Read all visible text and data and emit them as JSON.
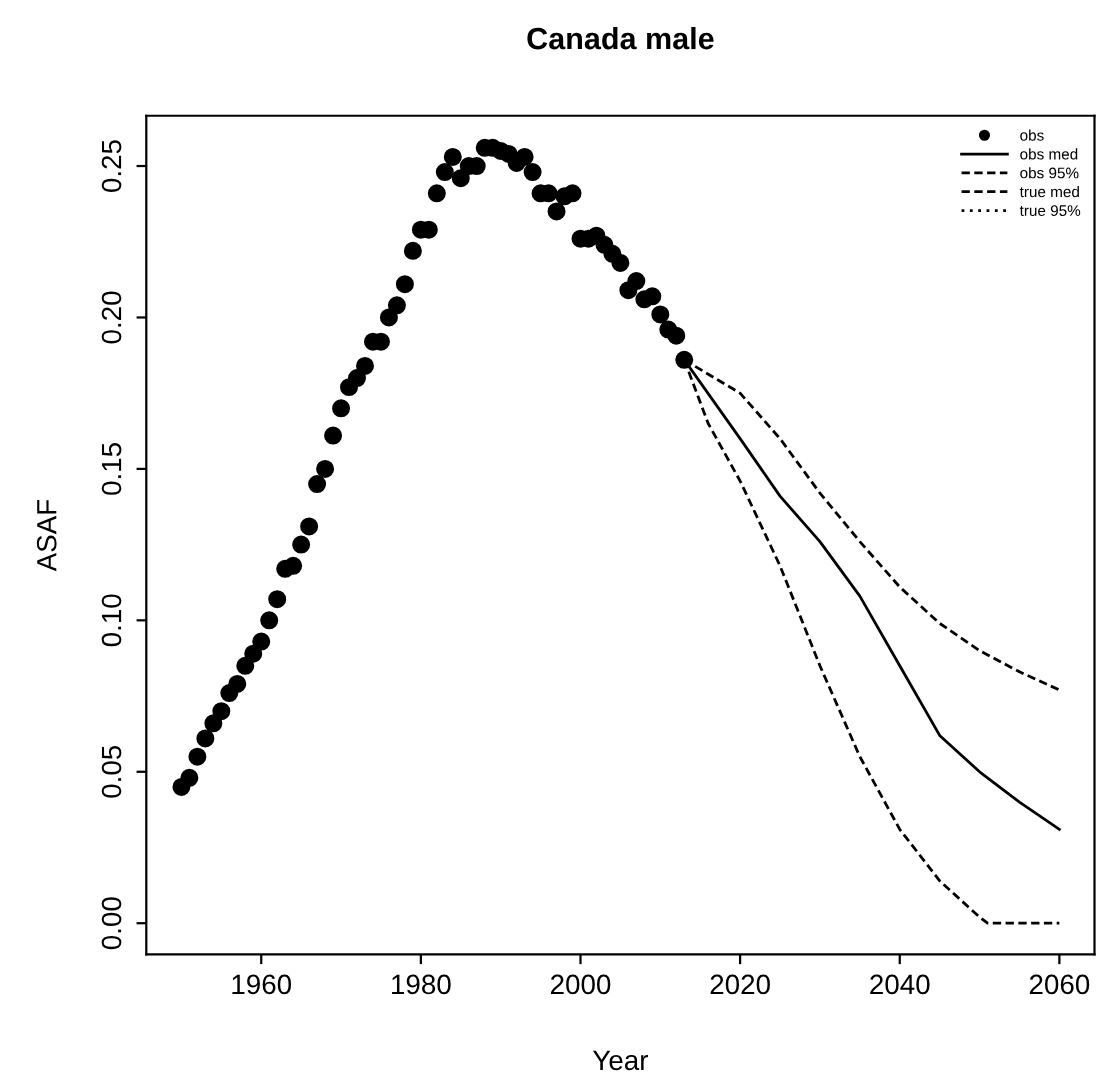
{
  "chart_data": {
    "type": "line",
    "title": "Canada male",
    "xlabel": "Year",
    "ylabel": "ASAF",
    "xlim": [
      1945.6,
      2064.4
    ],
    "xticks": [
      1960,
      1980,
      2000,
      2020,
      2040,
      2060
    ],
    "ylim": [
      -0.0103,
      0.2666
    ],
    "yticks": [
      {
        "value": 0,
        "label": "0.00"
      },
      {
        "value": 0.05,
        "label": "0.05"
      },
      {
        "value": 0.1,
        "label": "0.10"
      },
      {
        "value": 0.15,
        "label": "0.15"
      },
      {
        "value": 0.2,
        "label": "0.20"
      },
      {
        "value": 0.25,
        "label": "0.25"
      }
    ],
    "grid": false,
    "legend": "top right",
    "series": [
      {
        "name": "obs",
        "type": "scatter",
        "marker": "circle",
        "color": "#000000",
        "x": [
          1950,
          1951,
          1952,
          1953,
          1954,
          1955,
          1956,
          1957,
          1958,
          1959,
          1960,
          1961,
          1962,
          1963,
          1964,
          1965,
          1966,
          1967,
          1968,
          1969,
          1970,
          1971,
          1972,
          1973,
          1974,
          1975,
          1976,
          1977,
          1978,
          1979,
          1980,
          1981,
          1982,
          1983,
          1984,
          1985,
          1986,
          1987,
          1988,
          1989,
          1990,
          1991,
          1992,
          1993,
          1994,
          1995,
          1996,
          1997,
          1998,
          1999,
          2000,
          2001,
          2002,
          2003,
          2004,
          2005,
          2006,
          2007,
          2008,
          2009,
          2010,
          2011,
          2012,
          2013
        ],
        "values": [
          0.045,
          0.048,
          0.055,
          0.061,
          0.066,
          0.07,
          0.076,
          0.079,
          0.085,
          0.089,
          0.093,
          0.1,
          0.107,
          0.117,
          0.118,
          0.125,
          0.131,
          0.145,
          0.15,
          0.161,
          0.17,
          0.177,
          0.18,
          0.184,
          0.192,
          0.192,
          0.2,
          0.204,
          0.211,
          0.222,
          0.229,
          0.229,
          0.241,
          0.248,
          0.253,
          0.246,
          0.25,
          0.25,
          0.256,
          0.256,
          0.255,
          0.254,
          0.251,
          0.253,
          0.248,
          0.241,
          0.241,
          0.235,
          0.24,
          0.241,
          0.226,
          0.226,
          0.227,
          0.224,
          0.221,
          0.218,
          0.209,
          0.212,
          0.206,
          0.207,
          0.201,
          0.196,
          0.194,
          0.186
        ]
      },
      {
        "name": "obs med",
        "line_style": "solid",
        "color": "#000000",
        "x": [
          2013,
          2020,
          2025,
          2030,
          2035,
          2040,
          2045,
          2050,
          2055,
          2060
        ],
        "values": [
          0.186,
          0.16,
          0.141,
          0.126,
          0.108,
          0.085,
          0.062,
          0.05,
          0.04,
          0.031
        ]
      },
      {
        "name": "obs 95%",
        "line_style": "dashed",
        "color": "#000000",
        "x": [
          2013,
          2020,
          2025,
          2030,
          2035,
          2040,
          2045,
          2050,
          2055,
          2060
        ],
        "values": [
          0.186,
          0.175,
          0.16,
          0.142,
          0.126,
          0.111,
          0.099,
          0.09,
          0.083,
          0.077
        ]
      },
      {
        "line_style": "dashed",
        "color": "#000000",
        "x": [
          2013,
          2016,
          2020,
          2025,
          2030,
          2035,
          2040,
          2045,
          2050,
          2051,
          2060
        ],
        "values": [
          0.186,
          0.165,
          0.146,
          0.118,
          0.085,
          0.055,
          0.031,
          0.014,
          0.002,
          0,
          0
        ]
      },
      {
        "name": "true med",
        "line_style": "dashed",
        "color": "#000000"
      },
      {
        "name": "true 95%",
        "line_style": "dotted",
        "color": "#000000"
      }
    ]
  }
}
